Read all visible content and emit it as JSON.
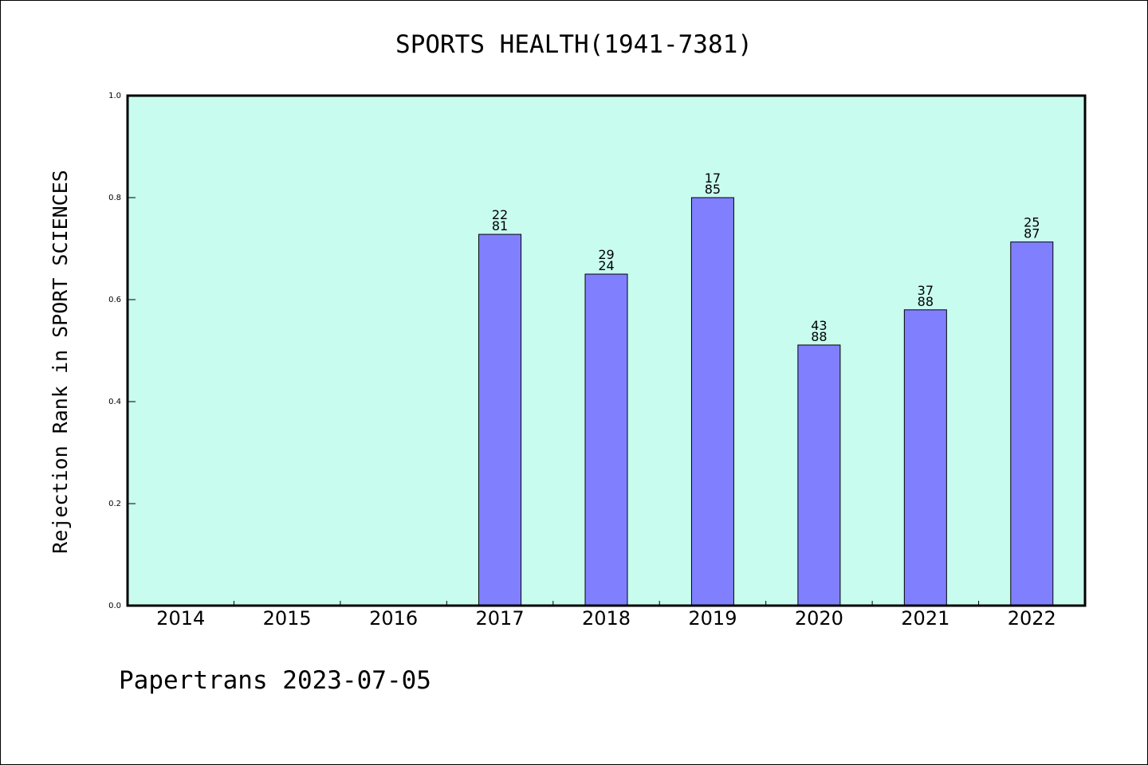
{
  "chart_data": {
    "type": "bar",
    "title": "SPORTS HEALTH(1941-7381)",
    "xlabel": "",
    "ylabel": "Rejection Rank in SPORT SCIENCES",
    "categories": [
      "2014",
      "2015",
      "2016",
      "2017",
      "2018",
      "2019",
      "2020",
      "2021",
      "2022"
    ],
    "values": [
      null,
      null,
      null,
      0.728,
      0.65,
      0.8,
      0.511,
      0.58,
      0.713
    ],
    "labels_top": [
      null,
      null,
      null,
      "22",
      "29",
      "17",
      "43",
      "37",
      "25"
    ],
    "labels_bottom": [
      null,
      null,
      null,
      "81",
      "24",
      "85",
      "88",
      "88",
      "87"
    ],
    "yticks": [
      "0.0",
      "0.2",
      "0.4",
      "0.6",
      "0.8",
      "1.0"
    ],
    "ylim": [
      0,
      1.0
    ],
    "grid": false,
    "background_color": "#c8fcee",
    "bar_color": "#8080ff"
  },
  "footer": {
    "text": "Papertrans 2023-07-05"
  }
}
